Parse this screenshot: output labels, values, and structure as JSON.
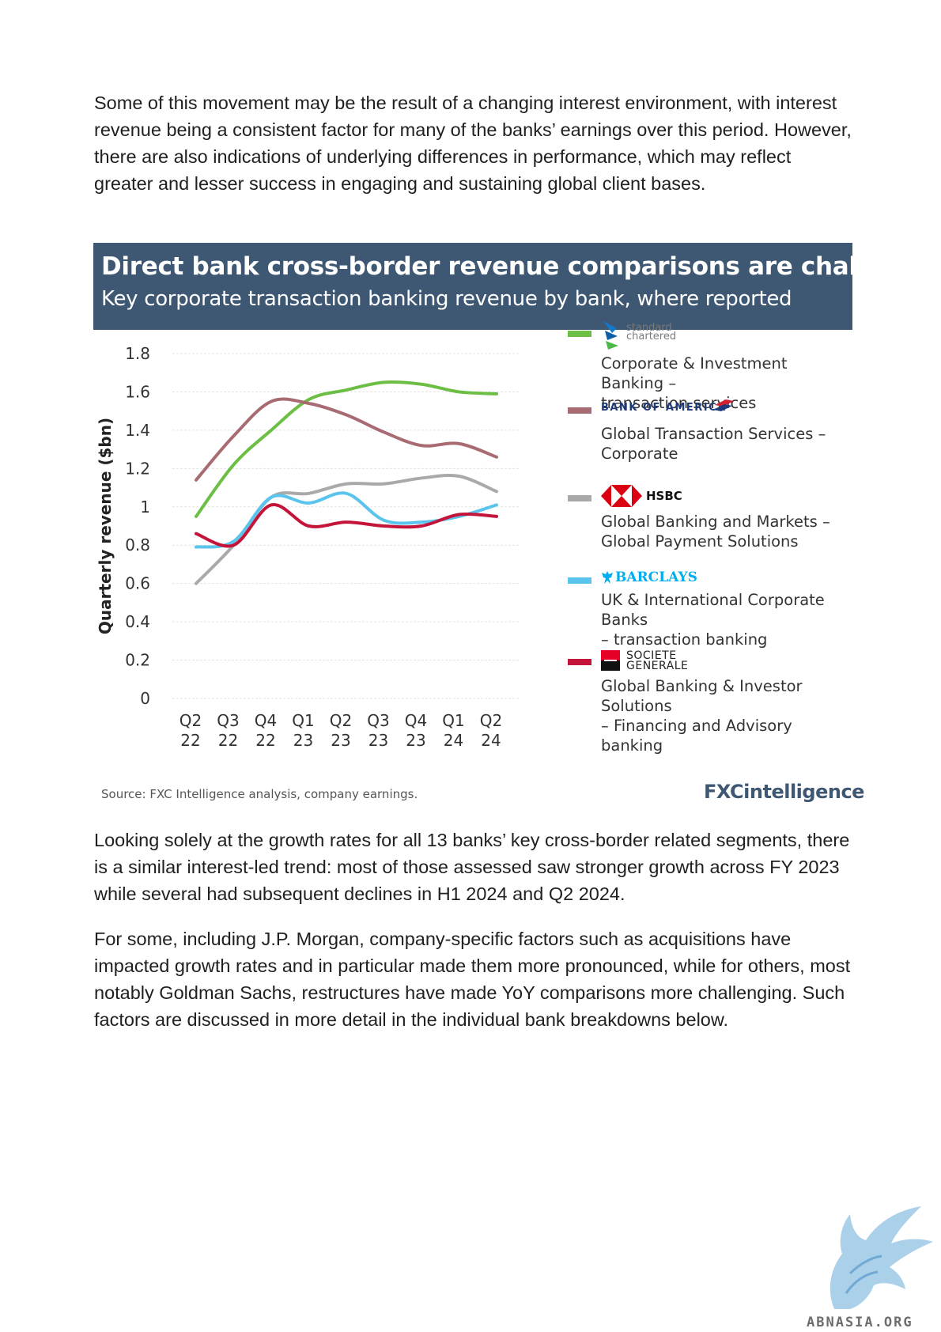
{
  "paragraphs": {
    "intro": "Some of this movement may be the result of a changing interest environment, with interest revenue being a consistent factor for many of the banks’ earnings over this period. However, there are also indications of underlying differences in performance, which may reflect greater and lesser success in engaging and sustaining global client bases.",
    "growth": "Looking solely at the growth rates for all 13 banks’ key cross-border related segments, there is a similar interest-led trend: most of those assessed saw stronger growth across FY 2023 while several had subsequent declines in H1 2024 and Q2 2024.",
    "factors": "For some, including J.P. Morgan, company-specific factors such as acquisitions have impacted growth rates and in particular made them more pronounced, while for others, most notably Goldman Sachs, restructures have made YoY comparisons more challenging. Such factors are discussed in more detail in the individual bank breakdowns below."
  },
  "figure": {
    "title": "Direct bank cross-border revenue comparisons are challenging",
    "subtitle": "Key corporate transaction banking revenue by bank, where reported",
    "source": "Source: FXC Intelligence analysis, company earnings.",
    "brand": "FXCintelligence"
  },
  "legend": [
    {
      "logo_text": [
        "standard",
        "chartered"
      ],
      "logo_icon": "standard-chartered-logo-icon",
      "description": [
        "Corporate & Investment Banking –",
        "transaction services"
      ]
    },
    {
      "logo_text": [
        "BANK OF AMERICA"
      ],
      "logo_icon": "bank-of-america-flag-icon",
      "description": [
        "Global Transaction Services –",
        "Corporate"
      ]
    },
    {
      "logo_text": [
        "HSBC"
      ],
      "logo_icon": "hsbc-hexagon-icon",
      "description": [
        "Global Banking and Markets –",
        "Global Payment Solutions"
      ]
    },
    {
      "logo_text": [
        "BARCLAYS"
      ],
      "logo_icon": "barclays-eagle-icon",
      "description": [
        "UK & International Corporate Banks",
        "– transaction banking"
      ]
    },
    {
      "logo_text": [
        "SOCIETE",
        "GENERALE"
      ],
      "logo_icon": "societe-generale-square-icon",
      "description": [
        "Global Banking & Investor Solutions",
        "– Financing and Advisory banking"
      ]
    }
  ],
  "chart_data": {
    "type": "line",
    "title": "Direct bank cross-border revenue comparisons are challenging",
    "subtitle": "Key corporate transaction banking revenue by bank, where reported",
    "ylabel": "Quarterly revenue ($bn)",
    "xlabel": "",
    "categories": [
      [
        "Q2",
        "22"
      ],
      [
        "Q3",
        "22"
      ],
      [
        "Q4",
        "22"
      ],
      [
        "Q1",
        "23"
      ],
      [
        "Q2",
        "23"
      ],
      [
        "Q3",
        "23"
      ],
      [
        "Q4",
        "23"
      ],
      [
        "Q1",
        "24"
      ],
      [
        "Q2",
        "24"
      ]
    ],
    "ylim": [
      0,
      1.8
    ],
    "yticks": [
      0,
      0.2,
      0.4,
      0.6,
      0.8,
      1,
      1.2,
      1.4,
      1.6,
      1.8
    ],
    "ytick_labels": [
      "0",
      "0.2",
      "0.4",
      "0.6",
      "0.8",
      "1",
      "1.2",
      "1.4",
      "1.6",
      "1.8"
    ],
    "grid": true,
    "legend_position": "right",
    "series": [
      {
        "name": "Corporate & Investment Banking – transaction services",
        "color": "#6cbf44",
        "values": [
          0.95,
          1.22,
          1.4,
          1.56,
          1.61,
          1.65,
          1.64,
          1.6,
          1.59
        ]
      },
      {
        "name": "Global Transaction Services – Corporate",
        "color": "#a86b72",
        "values": [
          1.14,
          1.37,
          1.55,
          1.54,
          1.48,
          1.39,
          1.32,
          1.33,
          1.26
        ]
      },
      {
        "name": "Global Banking and Markets – Global Payment Solutions",
        "color": "#a9a9a9",
        "values": [
          0.6,
          0.8,
          1.05,
          1.07,
          1.12,
          1.12,
          1.15,
          1.16,
          1.08
        ]
      },
      {
        "name": "UK & International Corporate Banks – transaction banking",
        "color": "#5bc4ec",
        "values": [
          0.79,
          0.82,
          1.05,
          1.02,
          1.07,
          0.93,
          0.92,
          0.95,
          1.01
        ]
      },
      {
        "name": "Global Banking & Investor Solutions – Financing and Advisory banking",
        "color": "#c4143a",
        "values": [
          0.86,
          0.8,
          1.01,
          0.9,
          0.92,
          0.9,
          0.9,
          0.96,
          0.95
        ]
      }
    ]
  },
  "watermark": {
    "text": "ABNASIA.ORG",
    "icon": "phoenix-bird-icon"
  }
}
